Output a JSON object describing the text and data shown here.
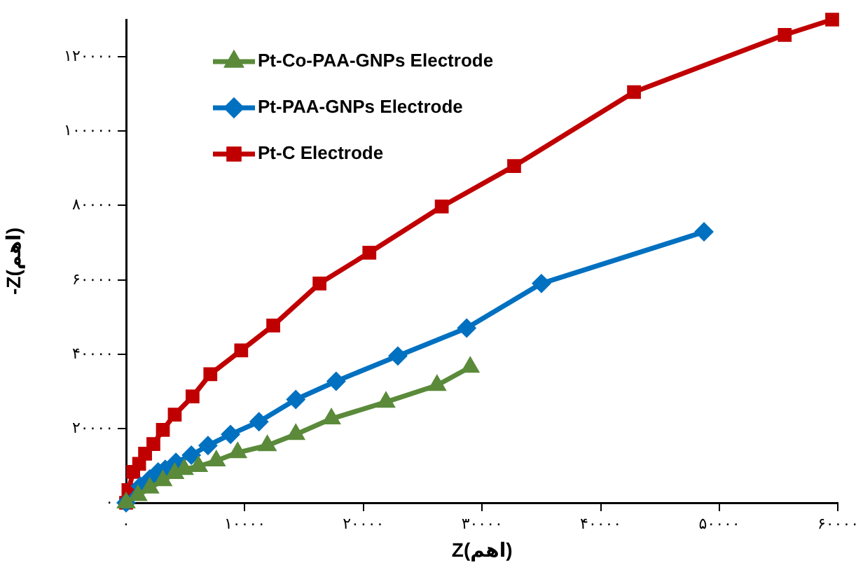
{
  "chart_data": {
    "type": "line",
    "xlabel": "Z(اهم)",
    "ylabel": "-Z(اهم)",
    "xlim": [
      0,
      60000
    ],
    "ylim": [
      0,
      130000
    ],
    "xticks": [
      {
        "value": 0,
        "label": "۰"
      },
      {
        "value": 10000,
        "label": "۱۰۰۰۰"
      },
      {
        "value": 20000,
        "label": "۲۰۰۰۰"
      },
      {
        "value": 30000,
        "label": "۳۰۰۰۰"
      },
      {
        "value": 40000,
        "label": "۴۰۰۰۰"
      },
      {
        "value": 50000,
        "label": "۵۰۰۰۰"
      },
      {
        "value": 60000,
        "label": "۶۰۰۰۰"
      }
    ],
    "yticks": [
      {
        "value": 0,
        "label": "۰"
      },
      {
        "value": 20000,
        "label": "۲۰۰۰۰"
      },
      {
        "value": 40000,
        "label": "۴۰۰۰۰"
      },
      {
        "value": 60000,
        "label": "۶۰۰۰۰"
      },
      {
        "value": 80000,
        "label": "۸۰۰۰۰"
      },
      {
        "value": 100000,
        "label": "۱۰۰۰۰۰"
      },
      {
        "value": 120000,
        "label": "۱۲۰۰۰۰"
      }
    ],
    "grid": false,
    "legend": "top left",
    "line_style": "solid",
    "series": [
      {
        "name": "Pt-Co-PAA-GNPs Electrode",
        "color": "#5a8a3a",
        "marker": "triangle",
        "x": [
          0,
          1000,
          2000,
          3100,
          4100,
          4900,
          6100,
          7600,
          9400,
          11900,
          14300,
          17300,
          21900,
          26200,
          29000
        ],
        "values": [
          0,
          2000,
          4000,
          6000,
          7900,
          9000,
          9800,
          11300,
          13500,
          15400,
          18400,
          22600,
          27100,
          31600,
          36500
        ]
      },
      {
        "name": "Pt-PAA-GNPs Electrode",
        "color": "#0070c0",
        "marker": "diamond",
        "x": [
          0,
          1200,
          2000,
          2700,
          3300,
          4200,
          5500,
          6900,
          8800,
          11200,
          14300,
          17700,
          22900,
          28700,
          35000,
          48700
        ],
        "values": [
          0,
          4500,
          6400,
          8300,
          9000,
          10900,
          12800,
          15400,
          18400,
          21800,
          27800,
          32700,
          39500,
          47000,
          59000,
          72900
        ]
      },
      {
        "name": "Pt-C Electrode",
        "color": "#c00000",
        "marker": "square",
        "x": [
          0,
          200,
          600,
          1100,
          1600,
          2300,
          3100,
          4100,
          5600,
          7100,
          9700,
          12400,
          16300,
          20500,
          26600,
          32700,
          42800,
          55500,
          59500
        ],
        "values": [
          0,
          3400,
          8300,
          10500,
          13200,
          15800,
          19600,
          23700,
          28600,
          34600,
          41000,
          47700,
          59000,
          67300,
          79700,
          90600,
          110500,
          125900,
          130000
        ]
      }
    ]
  }
}
